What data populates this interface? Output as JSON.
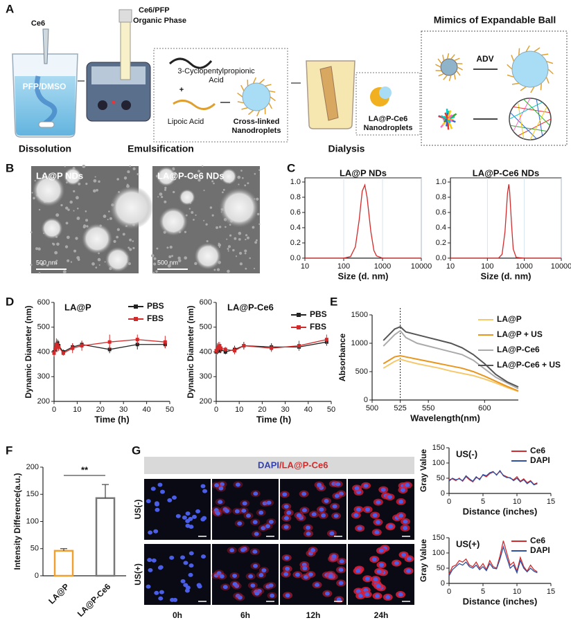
{
  "panels": [
    "A",
    "B",
    "C",
    "D",
    "E",
    "F",
    "G"
  ],
  "schematic": {
    "ce6": "Ce6",
    "solvent": "PFP/DMSO",
    "organic_1": "Ce6/PFP",
    "organic_2": "Organic Phase",
    "acid_1": "3-Cyclopentylpropionic",
    "acid_2": "Acid",
    "plus": "+",
    "lipoic": "Lipoic Acid",
    "crosslinked_1": "Cross-linked",
    "crosslinked_2": "Nanodroplets",
    "product_1": "LA@P-Ce6",
    "product_2": "Nanodroplets",
    "mimics": "Mimics of Expandable Ball",
    "adv": "ADV",
    "steps": [
      "Dissolution",
      "Emulsification",
      "Dialysis"
    ]
  },
  "tem": {
    "labels": [
      "LA@P NDs",
      "LA@P-Ce6 NDs"
    ],
    "scale": "500 nm"
  },
  "cells": {
    "header_1": "DAPI",
    "header_2": "/LA@P-Ce6",
    "rows": [
      "US(-)",
      "US(+)"
    ],
    "columns": [
      "0h",
      "6h",
      "12h",
      "24h"
    ]
  },
  "chart_data": [
    {
      "type": "line",
      "title": "LA@P NDs",
      "x": [
        10,
        100,
        150,
        200,
        250,
        300,
        350,
        400,
        500,
        600,
        700,
        1000,
        10000
      ],
      "series": [
        {
          "color": "#d22a2a",
          "values": [
            0,
            0,
            0.02,
            0.15,
            0.5,
            0.88,
            0.96,
            0.8,
            0.35,
            0.1,
            0.03,
            0,
            0
          ]
        }
      ],
      "xlim": [
        10,
        10000
      ],
      "ylim": [
        0,
        1
      ],
      "xticks": [
        10,
        100,
        1000,
        10000
      ],
      "yticks": [
        {
          "value": 0,
          "label": "0.0"
        },
        0.2,
        0.4,
        0.6,
        0.8,
        {
          "value": 1,
          "label": "1.0"
        }
      ],
      "log_x": true,
      "grid": true,
      "xlabel": "Size (d. nm)"
    },
    {
      "type": "line",
      "title": "LA@P-Ce6 NDs",
      "x": [
        10,
        100,
        200,
        250,
        300,
        350,
        380,
        400,
        450,
        500,
        600,
        1000,
        10000
      ],
      "series": [
        {
          "color": "#d22a2a",
          "values": [
            0,
            0,
            0,
            0.05,
            0.35,
            0.85,
            0.97,
            0.88,
            0.45,
            0.12,
            0.01,
            0,
            0
          ]
        }
      ],
      "xlim": [
        10,
        10000
      ],
      "ylim": [
        0,
        1
      ],
      "xticks": [
        10,
        100,
        1000,
        10000
      ],
      "yticks": [
        {
          "value": 0,
          "label": "0.0"
        },
        0.2,
        0.4,
        0.6,
        0.8,
        {
          "value": 1,
          "label": "1.0"
        }
      ],
      "log_x": true,
      "grid": true,
      "xlabel": "Size (d. nm)"
    },
    {
      "type": "line",
      "title": "LA@P",
      "x": [
        0,
        0.5,
        1,
        1.5,
        2,
        4,
        8,
        12,
        24,
        36,
        48
      ],
      "series": [
        {
          "name": "PBS",
          "color": "#222222",
          "marker": "square",
          "values": [
            400,
            410,
            420,
            435,
            425,
            400,
            420,
            430,
            410,
            430,
            430
          ],
          "errors": [
            15,
            20,
            20,
            15,
            20,
            10,
            15,
            15,
            15,
            20,
            15
          ]
        },
        {
          "name": "FBS",
          "color": "#d22a2a",
          "marker": "square",
          "values": [
            395,
            415,
            430,
            420,
            420,
            395,
            415,
            425,
            440,
            450,
            440
          ],
          "errors": [
            15,
            20,
            25,
            20,
            15,
            10,
            20,
            20,
            30,
            20,
            25
          ]
        }
      ],
      "xlim": [
        0,
        50
      ],
      "ylim": [
        200,
        600
      ],
      "xticks": [
        0,
        10,
        20,
        30,
        40,
        50
      ],
      "yticks": [
        200,
        300,
        400,
        500,
        600
      ],
      "xlabel": "Time (h)",
      "ylabel": "Dynamic Diameter (nm)"
    },
    {
      "type": "line",
      "title": "LA@P-Ce6",
      "x": [
        0,
        0.5,
        1,
        1.5,
        2,
        4,
        8,
        12,
        24,
        36,
        48
      ],
      "series": [
        {
          "name": "PBS",
          "color": "#222222",
          "marker": "square",
          "values": [
            400,
            405,
            410,
            405,
            410,
            400,
            410,
            425,
            420,
            420,
            440
          ],
          "errors": [
            10,
            15,
            15,
            10,
            15,
            10,
            15,
            15,
            15,
            15,
            15
          ]
        },
        {
          "name": "FBS",
          "color": "#d22a2a",
          "marker": "square",
          "values": [
            405,
            415,
            420,
            425,
            415,
            410,
            405,
            425,
            415,
            425,
            450
          ],
          "errors": [
            15,
            20,
            20,
            15,
            15,
            10,
            15,
            15,
            15,
            20,
            20
          ]
        }
      ],
      "xlim": [
        0,
        50
      ],
      "ylim": [
        200,
        600
      ],
      "xticks": [
        0,
        10,
        20,
        30,
        40,
        50
      ],
      "yticks": [
        200,
        300,
        400,
        500,
        600
      ],
      "xlabel": "Time (h)",
      "ylabel": "Dynamic Diameter (nm)"
    },
    {
      "type": "line",
      "x": [
        510,
        515,
        520,
        525,
        530,
        540,
        550,
        560,
        570,
        580,
        590,
        600,
        610,
        620,
        630
      ],
      "series": [
        {
          "name": "LA@P",
          "color": "#f5c86b",
          "values": [
            560,
            620,
            680,
            720,
            690,
            640,
            600,
            560,
            510,
            470,
            430,
            370,
            300,
            220,
            150
          ]
        },
        {
          "name": "LA@P + US",
          "color": "#e8961e",
          "values": [
            640,
            700,
            760,
            780,
            760,
            720,
            680,
            640,
            600,
            560,
            500,
            420,
            330,
            240,
            160
          ]
        },
        {
          "name": "LA@P-Ce6",
          "color": "#aaaaaa",
          "values": [
            950,
            1050,
            1150,
            1220,
            1100,
            1000,
            950,
            900,
            850,
            800,
            700,
            550,
            400,
            300,
            200
          ]
        },
        {
          "name": "LA@P-Ce6 + US",
          "color": "#555555",
          "values": [
            1050,
            1150,
            1250,
            1290,
            1200,
            1150,
            1100,
            1050,
            1000,
            920,
            800,
            640,
            450,
            320,
            230
          ]
        }
      ],
      "vline": 525,
      "xlim": [
        500,
        630
      ],
      "ylim": [
        0,
        1500
      ],
      "xticks": [
        500,
        525,
        550,
        600
      ],
      "yticks": [
        0,
        500,
        1000,
        1500
      ],
      "xlabel": "Wavelength(nm)",
      "ylabel": "Absorbance"
    },
    {
      "type": "bar",
      "categories": [
        "LA@P",
        "LA@P-Ce6"
      ],
      "values": [
        46,
        143
      ],
      "errors": [
        4,
        25
      ],
      "colors": [
        "#f0a030",
        "#777777"
      ],
      "ylim": [
        0,
        200
      ],
      "yticks": [
        0,
        50,
        100,
        150,
        200
      ],
      "annotation": "**",
      "ylabel": "Intensity Difference(a.u.)"
    },
    {
      "type": "line",
      "title": "US(-)",
      "x": [
        0,
        0.5,
        1,
        1.5,
        2,
        2.5,
        3,
        3.5,
        4,
        4.5,
        5,
        5.5,
        6,
        6.5,
        7,
        7.5,
        8,
        8.5,
        9,
        9.5,
        10,
        10.5,
        11,
        11.5,
        12,
        12.5,
        13
      ],
      "series": [
        {
          "name": "Ce6",
          "color": "#d22a2a",
          "values": [
            45,
            48,
            42,
            50,
            40,
            55,
            45,
            38,
            52,
            48,
            60,
            55,
            65,
            70,
            62,
            72,
            60,
            55,
            50,
            45,
            55,
            40,
            48,
            35,
            42,
            30,
            35
          ]
        },
        {
          "name": "DAPI",
          "color": "#2c4fa3",
          "values": [
            40,
            50,
            45,
            48,
            42,
            58,
            48,
            40,
            55,
            45,
            62,
            58,
            68,
            72,
            60,
            75,
            58,
            52,
            52,
            42,
            50,
            38,
            45,
            32,
            40,
            28,
            32
          ]
        }
      ],
      "xlim": [
        0,
        15
      ],
      "ylim": [
        0,
        150
      ],
      "xticks": [
        0,
        5,
        10,
        15
      ],
      "yticks": [
        0,
        50,
        100,
        150
      ],
      "xlabel": "Distance (inches)",
      "ylabel": "Gray Value"
    },
    {
      "type": "line",
      "title": "US(+)",
      "x": [
        0,
        0.5,
        1,
        1.5,
        2,
        2.5,
        3,
        3.5,
        4,
        4.5,
        5,
        5.5,
        6,
        6.5,
        7,
        7.5,
        8,
        8.5,
        9,
        9.5,
        10,
        10.5,
        11,
        11.5,
        12,
        12.5,
        13
      ],
      "series": [
        {
          "name": "Ce6",
          "color": "#d22a2a",
          "values": [
            30,
            55,
            60,
            75,
            70,
            80,
            60,
            55,
            70,
            50,
            65,
            45,
            75,
            55,
            50,
            90,
            140,
            100,
            60,
            70,
            40,
            85,
            55,
            40,
            60,
            45,
            38
          ]
        },
        {
          "name": "DAPI",
          "color": "#2c4fa3",
          "values": [
            25,
            45,
            55,
            65,
            60,
            70,
            55,
            50,
            60,
            45,
            55,
            42,
            65,
            50,
            48,
            80,
            120,
            85,
            50,
            60,
            35,
            75,
            50,
            38,
            50,
            40,
            35
          ]
        }
      ],
      "xlim": [
        0,
        15
      ],
      "ylim": [
        0,
        150
      ],
      "xticks": [
        0,
        5,
        10,
        15
      ],
      "yticks": [
        0,
        50,
        100,
        150
      ],
      "xlabel": "Distance (inches)",
      "ylabel": "Gray Value"
    }
  ]
}
